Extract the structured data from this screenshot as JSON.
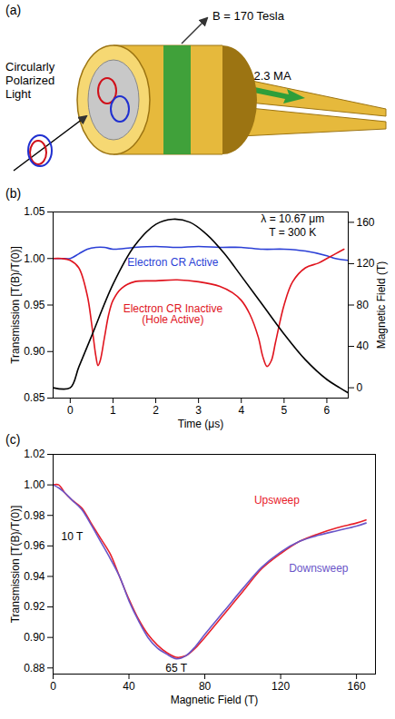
{
  "diagram": {
    "panel_label": "(a)",
    "field_label": "B = 170 Tesla",
    "current_label": "2.3 MA",
    "light_label": "Circularly Polarized Light"
  },
  "chart_data": [
    {
      "type": "line",
      "panel_label": "(b)",
      "xlabel": "Time (μs)",
      "ylabel": "Transmission [T(B)/T(0)]",
      "y2label": "Magnetic Field (T)",
      "xlim": [
        -0.4,
        6.5
      ],
      "xticks": [
        0,
        1,
        2,
        3,
        4,
        5,
        6
      ],
      "ylim": [
        0.85,
        1.05
      ],
      "yticks": [
        0.85,
        {
          "value": 0.9,
          "label": "0.90"
        },
        0.95,
        {
          "value": 1,
          "label": "1.00"
        },
        1.05
      ],
      "y2lim": [
        -10,
        170
      ],
      "y2ticks": [
        0,
        40,
        80,
        120,
        160
      ],
      "series": [
        {
          "color": "#2b3fd6",
          "x": [
            -0.4,
            -0.2,
            0,
            0.2,
            0.4,
            0.6,
            0.8,
            1.0,
            1.5,
            2,
            2.5,
            3,
            3.5,
            4,
            4.5,
            5,
            5.5,
            6,
            6.2,
            6.5
          ],
          "values": [
            1.0,
            1.0,
            1.0,
            1.005,
            1.01,
            1.012,
            1.012,
            1.01,
            1.012,
            1.013,
            1.012,
            1.013,
            1.012,
            1.012,
            1.01,
            1.01,
            1.008,
            1.003,
            1.0,
            0.998
          ]
        },
        {
          "color": "#e0141e",
          "x": [
            -0.4,
            -0.2,
            0,
            0.2,
            0.4,
            0.5,
            0.6,
            0.65,
            0.7,
            0.8,
            0.9,
            1.0,
            1.2,
            1.5,
            2,
            2.5,
            3,
            3.5,
            3.8,
            4.0,
            4.2,
            4.4,
            4.5,
            4.6,
            4.7,
            4.8,
            5.0,
            5.2,
            5.5,
            5.8,
            6.0,
            6.2,
            6.4
          ],
          "values": [
            1.0,
            1.0,
            0.998,
            0.99,
            0.96,
            0.93,
            0.895,
            0.885,
            0.89,
            0.915,
            0.94,
            0.955,
            0.968,
            0.975,
            0.976,
            0.977,
            0.975,
            0.97,
            0.963,
            0.955,
            0.94,
            0.915,
            0.895,
            0.884,
            0.89,
            0.91,
            0.95,
            0.975,
            0.99,
            0.995,
            1.0,
            1.005,
            1.01
          ]
        },
        {
          "color": "#000000",
          "axis": "y2",
          "x": [
            -0.4,
            0,
            0.2,
            0.5,
            1.0,
            1.5,
            2.0,
            2.4,
            2.8,
            3.2,
            3.6,
            4.0,
            4.5,
            5.0,
            5.5,
            6.0,
            6.3,
            6.5
          ],
          "values": [
            0,
            0,
            20,
            50,
            100,
            137,
            158,
            163,
            160,
            148,
            130,
            108,
            80,
            52,
            27,
            8,
            0,
            -5
          ]
        }
      ],
      "annotations": [
        {
          "text": "λ = 10.67 μm",
          "x": 5.2,
          "y": 1.043
        },
        {
          "text": "T = 300 K",
          "x": 5.2,
          "y": 1.028
        },
        {
          "text": "Electron CR Active",
          "x": 2.4,
          "y": 0.996,
          "color": "#2b3fd6"
        },
        {
          "text": "Electron CR Inactive (Hole Active)",
          "x": 2.4,
          "y": 0.94,
          "color": "#e0141e"
        }
      ]
    },
    {
      "type": "line",
      "panel_label": "(c)",
      "xlabel": "Magnetic Field (T)",
      "ylabel": "Transmission [T(B)/T(0)]",
      "xlim": [
        0,
        170
      ],
      "xticks": [
        0,
        40,
        80,
        120,
        160
      ],
      "ylim": [
        0.876,
        1.02
      ],
      "yticks": [
        0.88,
        {
          "value": 0.9,
          "label": "0.90"
        },
        0.92,
        0.94,
        0.96,
        0.98,
        {
          "value": 1,
          "label": "1.00"
        },
        1.02
      ],
      "series": [
        {
          "color": "#e8202a",
          "x": [
            0,
            3,
            6,
            10,
            15,
            20,
            25,
            30,
            35,
            40,
            45,
            50,
            55,
            60,
            65,
            70,
            75,
            80,
            90,
            100,
            110,
            120,
            130,
            140,
            150,
            160,
            165
          ],
          "values": [
            1.0,
            1.0,
            0.995,
            0.99,
            0.985,
            0.975,
            0.965,
            0.955,
            0.94,
            0.925,
            0.912,
            0.902,
            0.895,
            0.89,
            0.887,
            0.888,
            0.893,
            0.9,
            0.915,
            0.93,
            0.945,
            0.955,
            0.963,
            0.968,
            0.972,
            0.975,
            0.977
          ]
        },
        {
          "color": "#6a55c8",
          "x": [
            0,
            3,
            6,
            10,
            15,
            20,
            25,
            30,
            35,
            40,
            45,
            50,
            55,
            60,
            65,
            70,
            75,
            80,
            90,
            100,
            110,
            120,
            130,
            140,
            150,
            160,
            165
          ],
          "values": [
            1.0,
            0.998,
            0.995,
            0.99,
            0.984,
            0.974,
            0.963,
            0.952,
            0.94,
            0.924,
            0.911,
            0.9,
            0.893,
            0.889,
            0.886,
            0.888,
            0.894,
            0.902,
            0.917,
            0.932,
            0.946,
            0.956,
            0.963,
            0.967,
            0.97,
            0.973,
            0.975
          ]
        }
      ],
      "annotations": [
        {
          "text": "10 T",
          "x": 10,
          "y": 0.966
        },
        {
          "text": "65 T",
          "x": 65,
          "y": 0.88
        },
        {
          "text": "Upsweep",
          "x": 118,
          "y": 0.99,
          "color": "#e8202a"
        },
        {
          "text": "Downsweep",
          "x": 140,
          "y": 0.945,
          "color": "#6a55c8"
        }
      ]
    }
  ]
}
